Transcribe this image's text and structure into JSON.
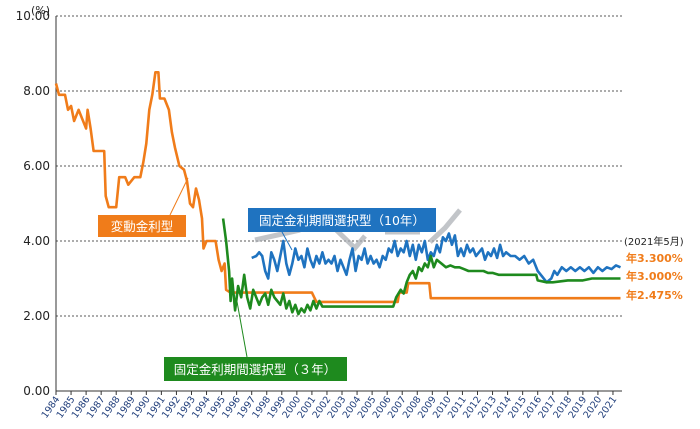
{
  "chart_data": {
    "type": "line",
    "y_unit": "(%)",
    "ylim": [
      0,
      10
    ],
    "y_ticks": [
      "0.00",
      "2.00",
      "4.00",
      "6.00",
      "8.00",
      "10.00"
    ],
    "y_tick_values": [
      0,
      2,
      4,
      6,
      8,
      10
    ],
    "xlim": [
      1984,
      2021.6
    ],
    "x_ticks": [
      "1984",
      "1985",
      "1986",
      "1987",
      "1988",
      "1989",
      "1990",
      "1991",
      "1992",
      "1993",
      "1994",
      "1995",
      "1996",
      "1997",
      "1998",
      "1999",
      "2000",
      "2001",
      "2002",
      "2003",
      "2004",
      "2005",
      "2006",
      "2007",
      "2008",
      "2009",
      "2010",
      "2011",
      "2012",
      "2013",
      "2014",
      "2015",
      "2016",
      "2017",
      "2018",
      "2019",
      "2020",
      "2021"
    ],
    "grid": "horizontal-dotted",
    "date_note": "(2021年5月)",
    "colors": {
      "variable": "#f07c1a",
      "fixed10": "#1f73c0",
      "fixed3": "#1e8a1e",
      "watermark": "#9aa0a6"
    },
    "series": [
      {
        "key": "variable",
        "name": "変動金利型",
        "end_label": "年2.475%",
        "points": [
          [
            1984.0,
            8.2
          ],
          [
            1984.2,
            7.9
          ],
          [
            1984.6,
            7.9
          ],
          [
            1984.8,
            7.5
          ],
          [
            1985.0,
            7.6
          ],
          [
            1985.2,
            7.2
          ],
          [
            1985.5,
            7.5
          ],
          [
            1985.7,
            7.3
          ],
          [
            1986.0,
            7.0
          ],
          [
            1986.1,
            7.5
          ],
          [
            1986.3,
            7.0
          ],
          [
            1986.5,
            6.4
          ],
          [
            1987.0,
            6.4
          ],
          [
            1987.2,
            6.4
          ],
          [
            1987.3,
            5.2
          ],
          [
            1987.5,
            4.9
          ],
          [
            1988.0,
            4.9
          ],
          [
            1988.2,
            5.7
          ],
          [
            1988.6,
            5.7
          ],
          [
            1988.8,
            5.5
          ],
          [
            1989.2,
            5.7
          ],
          [
            1989.6,
            5.7
          ],
          [
            1989.8,
            6.1
          ],
          [
            1990.0,
            6.6
          ],
          [
            1990.2,
            7.5
          ],
          [
            1990.4,
            7.9
          ],
          [
            1990.6,
            8.5
          ],
          [
            1990.8,
            8.5
          ],
          [
            1990.9,
            7.8
          ],
          [
            1991.2,
            7.8
          ],
          [
            1991.5,
            7.5
          ],
          [
            1991.7,
            6.9
          ],
          [
            1991.9,
            6.5
          ],
          [
            1992.2,
            6.0
          ],
          [
            1992.5,
            5.9
          ],
          [
            1992.7,
            5.6
          ],
          [
            1992.9,
            5.0
          ],
          [
            1993.1,
            4.9
          ],
          [
            1993.3,
            5.4
          ],
          [
            1993.5,
            5.1
          ],
          [
            1993.7,
            4.6
          ],
          [
            1993.8,
            3.8
          ],
          [
            1994.0,
            4.0
          ],
          [
            1994.3,
            4.0
          ],
          [
            1994.6,
            4.0
          ],
          [
            1994.8,
            3.5
          ],
          [
            1995.0,
            3.2
          ],
          [
            1995.2,
            3.4
          ],
          [
            1995.3,
            2.7
          ],
          [
            1995.6,
            2.625
          ],
          [
            1998.0,
            2.625
          ],
          [
            2001.0,
            2.625
          ],
          [
            2001.3,
            2.375
          ],
          [
            2006.7,
            2.375
          ],
          [
            2006.8,
            2.625
          ],
          [
            2007.3,
            2.625
          ],
          [
            2007.4,
            2.875
          ],
          [
            2008.8,
            2.875
          ],
          [
            2008.9,
            2.475
          ],
          [
            2021.5,
            2.475
          ]
        ]
      },
      {
        "key": "fixed10",
        "name": "固定金利期間選択型（10年）",
        "end_label": "年3.300%",
        "points": [
          [
            1997.0,
            3.55
          ],
          [
            1997.3,
            3.6
          ],
          [
            1997.5,
            3.7
          ],
          [
            1997.7,
            3.6
          ],
          [
            1997.9,
            3.2
          ],
          [
            1998.1,
            3.0
          ],
          [
            1998.3,
            3.7
          ],
          [
            1998.5,
            3.5
          ],
          [
            1998.7,
            3.2
          ],
          [
            1998.9,
            3.6
          ],
          [
            1999.1,
            4.0
          ],
          [
            1999.3,
            3.4
          ],
          [
            1999.5,
            3.1
          ],
          [
            1999.7,
            3.4
          ],
          [
            1999.9,
            3.8
          ],
          [
            2000.1,
            3.5
          ],
          [
            2000.3,
            3.6
          ],
          [
            2000.5,
            3.3
          ],
          [
            2000.7,
            3.8
          ],
          [
            2000.9,
            3.5
          ],
          [
            2001.1,
            3.3
          ],
          [
            2001.3,
            3.6
          ],
          [
            2001.5,
            3.4
          ],
          [
            2001.7,
            3.7
          ],
          [
            2001.9,
            3.4
          ],
          [
            2002.1,
            3.5
          ],
          [
            2002.3,
            3.4
          ],
          [
            2002.5,
            3.6
          ],
          [
            2002.7,
            3.2
          ],
          [
            2002.9,
            3.5
          ],
          [
            2003.1,
            3.3
          ],
          [
            2003.3,
            3.1
          ],
          [
            2003.5,
            3.5
          ],
          [
            2003.7,
            3.8
          ],
          [
            2003.9,
            3.2
          ],
          [
            2004.1,
            3.6
          ],
          [
            2004.3,
            3.5
          ],
          [
            2004.5,
            3.8
          ],
          [
            2004.7,
            3.4
          ],
          [
            2004.9,
            3.6
          ],
          [
            2005.1,
            3.4
          ],
          [
            2005.3,
            3.5
          ],
          [
            2005.5,
            3.3
          ],
          [
            2005.7,
            3.6
          ],
          [
            2005.9,
            3.5
          ],
          [
            2006.1,
            3.8
          ],
          [
            2006.3,
            3.7
          ],
          [
            2006.5,
            4.0
          ],
          [
            2006.7,
            3.6
          ],
          [
            2006.9,
            3.8
          ],
          [
            2007.1,
            3.7
          ],
          [
            2007.3,
            4.0
          ],
          [
            2007.5,
            3.6
          ],
          [
            2007.7,
            3.9
          ],
          [
            2007.9,
            3.5
          ],
          [
            2008.1,
            3.9
          ],
          [
            2008.3,
            3.7
          ],
          [
            2008.5,
            4.0
          ],
          [
            2008.7,
            3.5
          ],
          [
            2008.9,
            3.7
          ],
          [
            2009.1,
            3.6
          ],
          [
            2009.3,
            3.9
          ],
          [
            2009.5,
            3.7
          ],
          [
            2009.7,
            4.1
          ],
          [
            2009.9,
            4.0
          ],
          [
            2010.1,
            4.2
          ],
          [
            2010.3,
            3.9
          ],
          [
            2010.5,
            4.15
          ],
          [
            2010.7,
            3.6
          ],
          [
            2010.9,
            3.8
          ],
          [
            2011.1,
            3.6
          ],
          [
            2011.3,
            3.9
          ],
          [
            2011.5,
            3.7
          ],
          [
            2011.7,
            3.8
          ],
          [
            2011.9,
            3.6
          ],
          [
            2012.1,
            3.7
          ],
          [
            2012.3,
            3.8
          ],
          [
            2012.5,
            3.5
          ],
          [
            2012.7,
            3.7
          ],
          [
            2012.9,
            3.6
          ],
          [
            2013.1,
            3.8
          ],
          [
            2013.3,
            3.55
          ],
          [
            2013.5,
            3.9
          ],
          [
            2013.7,
            3.6
          ],
          [
            2013.9,
            3.7
          ],
          [
            2014.2,
            3.6
          ],
          [
            2014.5,
            3.6
          ],
          [
            2014.8,
            3.5
          ],
          [
            2015.1,
            3.6
          ],
          [
            2015.4,
            3.4
          ],
          [
            2015.7,
            3.5
          ],
          [
            2016.0,
            3.2
          ],
          [
            2016.3,
            3.05
          ],
          [
            2016.6,
            2.9
          ],
          [
            2016.9,
            3.0
          ],
          [
            2017.1,
            3.2
          ],
          [
            2017.3,
            3.1
          ],
          [
            2017.6,
            3.3
          ],
          [
            2017.9,
            3.2
          ],
          [
            2018.2,
            3.3
          ],
          [
            2018.5,
            3.2
          ],
          [
            2018.8,
            3.3
          ],
          [
            2019.1,
            3.2
          ],
          [
            2019.4,
            3.3
          ],
          [
            2019.7,
            3.15
          ],
          [
            2020.0,
            3.3
          ],
          [
            2020.3,
            3.2
          ],
          [
            2020.6,
            3.3
          ],
          [
            2020.9,
            3.25
          ],
          [
            2021.2,
            3.35
          ],
          [
            2021.5,
            3.3
          ]
        ]
      },
      {
        "key": "fixed3",
        "name": "固定金利期間選択型（３年）",
        "end_label": "年3.000%",
        "points": [
          [
            1995.1,
            4.6
          ],
          [
            1995.3,
            4.0
          ],
          [
            1995.5,
            3.2
          ],
          [
            1995.6,
            2.4
          ],
          [
            1995.7,
            3.0
          ],
          [
            1995.9,
            2.15
          ],
          [
            1996.1,
            2.8
          ],
          [
            1996.3,
            2.5
          ],
          [
            1996.5,
            3.1
          ],
          [
            1996.7,
            2.5
          ],
          [
            1996.9,
            2.2
          ],
          [
            1997.1,
            2.7
          ],
          [
            1997.3,
            2.5
          ],
          [
            1997.5,
            2.3
          ],
          [
            1997.7,
            2.5
          ],
          [
            1997.9,
            2.6
          ],
          [
            1998.1,
            2.3
          ],
          [
            1998.3,
            2.7
          ],
          [
            1998.5,
            2.5
          ],
          [
            1998.7,
            2.4
          ],
          [
            1998.9,
            2.3
          ],
          [
            1999.1,
            2.6
          ],
          [
            1999.3,
            2.2
          ],
          [
            1999.5,
            2.4
          ],
          [
            1999.7,
            2.1
          ],
          [
            1999.9,
            2.3
          ],
          [
            2000.1,
            2.05
          ],
          [
            2000.3,
            2.2
          ],
          [
            2000.5,
            2.1
          ],
          [
            2000.7,
            2.3
          ],
          [
            2000.9,
            2.15
          ],
          [
            2001.1,
            2.4
          ],
          [
            2001.3,
            2.2
          ],
          [
            2001.5,
            2.4
          ],
          [
            2001.7,
            2.25
          ],
          [
            2002.0,
            2.25
          ],
          [
            2004.0,
            2.25
          ],
          [
            2006.0,
            2.25
          ],
          [
            2006.4,
            2.25
          ],
          [
            2006.6,
            2.5
          ],
          [
            2006.9,
            2.7
          ],
          [
            2007.1,
            2.6
          ],
          [
            2007.3,
            2.9
          ],
          [
            2007.5,
            3.1
          ],
          [
            2007.7,
            3.2
          ],
          [
            2007.9,
            3.0
          ],
          [
            2008.1,
            3.3
          ],
          [
            2008.3,
            3.2
          ],
          [
            2008.5,
            3.4
          ],
          [
            2008.7,
            3.3
          ],
          [
            2008.9,
            3.6
          ],
          [
            2009.1,
            3.3
          ],
          [
            2009.3,
            3.5
          ],
          [
            2009.6,
            3.4
          ],
          [
            2009.9,
            3.3
          ],
          [
            2010.2,
            3.35
          ],
          [
            2010.5,
            3.3
          ],
          [
            2010.8,
            3.3
          ],
          [
            2011.1,
            3.25
          ],
          [
            2011.4,
            3.2
          ],
          [
            2011.7,
            3.2
          ],
          [
            2012.0,
            3.2
          ],
          [
            2012.4,
            3.2
          ],
          [
            2012.7,
            3.15
          ],
          [
            2013.0,
            3.15
          ],
          [
            2013.4,
            3.1
          ],
          [
            2014.0,
            3.1
          ],
          [
            2015.0,
            3.1
          ],
          [
            2015.9,
            3.1
          ],
          [
            2016.0,
            2.95
          ],
          [
            2016.6,
            2.9
          ],
          [
            2017.0,
            2.9
          ],
          [
            2018.0,
            2.95
          ],
          [
            2019.0,
            2.95
          ],
          [
            2019.6,
            3.0
          ],
          [
            2021.5,
            3.0
          ]
        ]
      }
    ]
  }
}
